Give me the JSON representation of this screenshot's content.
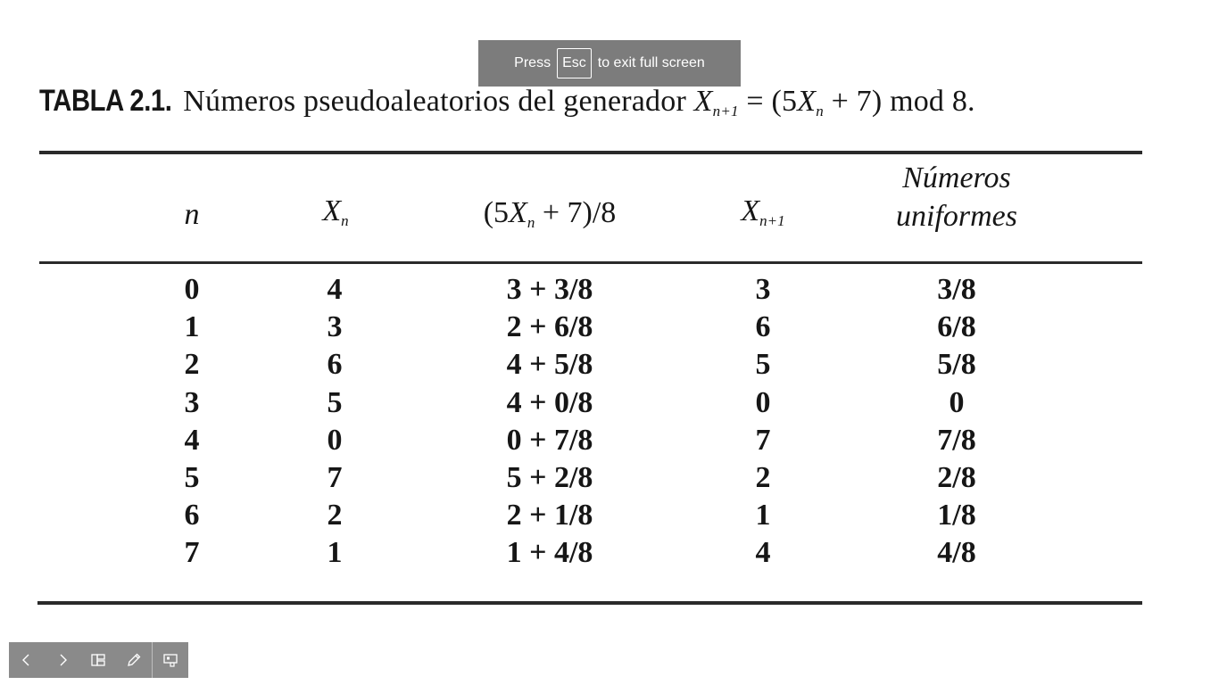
{
  "fullscreen_notice": {
    "press": "Press",
    "key": "Esc",
    "suffix": "to exit full screen"
  },
  "caption": {
    "label": "TABLA 2.1.",
    "text": "Números pseudoaleatorios del generador",
    "formula": "X",
    "formula_sub": "n+1",
    "formula_rest": " = (5",
    "formula_x2": "X",
    "formula_sub2": "n",
    "formula_end": " + 7) mod 8."
  },
  "table": {
    "headers": {
      "n": "n",
      "xn": "X",
      "xn_sub": "n",
      "expr_open": "(5",
      "expr_x": "X",
      "expr_sub": "n",
      "expr_close": " + 7)/8",
      "xn1": "X",
      "xn1_sub": "n+1",
      "uniform_line1": "Números",
      "uniform_line2": "uniformes"
    },
    "rows": [
      {
        "n": "0",
        "xn": "4",
        "expr": "3 + 3/8",
        "xn1": "3",
        "uni": "3/8"
      },
      {
        "n": "1",
        "xn": "3",
        "expr": "2 + 6/8",
        "xn1": "6",
        "uni": "6/8"
      },
      {
        "n": "2",
        "xn": "6",
        "expr": "4 + 5/8",
        "xn1": "5",
        "uni": "5/8"
      },
      {
        "n": "3",
        "xn": "5",
        "expr": "4 + 0/8",
        "xn1": "0",
        "uni": "0"
      },
      {
        "n": "4",
        "xn": "0",
        "expr": "0 + 7/8",
        "xn1": "7",
        "uni": "7/8"
      },
      {
        "n": "5",
        "xn": "7",
        "expr": "5 + 2/8",
        "xn1": "2",
        "uni": "2/8"
      },
      {
        "n": "6",
        "xn": "2",
        "expr": "2 + 1/8",
        "xn1": "1",
        "uni": "1/8"
      },
      {
        "n": "7",
        "xn": "1",
        "expr": "1 + 4/8",
        "xn1": "4",
        "uni": "4/8"
      }
    ]
  },
  "toolbar": {
    "buttons": [
      {
        "icon": "chevron-left-icon"
      },
      {
        "icon": "chevron-right-icon"
      },
      {
        "icon": "slide-sorter-icon"
      },
      {
        "icon": "pen-icon"
      },
      {
        "icon": "presenter-view-icon"
      }
    ],
    "icon_color": "#ffffff",
    "background": "#8a8a8a"
  }
}
